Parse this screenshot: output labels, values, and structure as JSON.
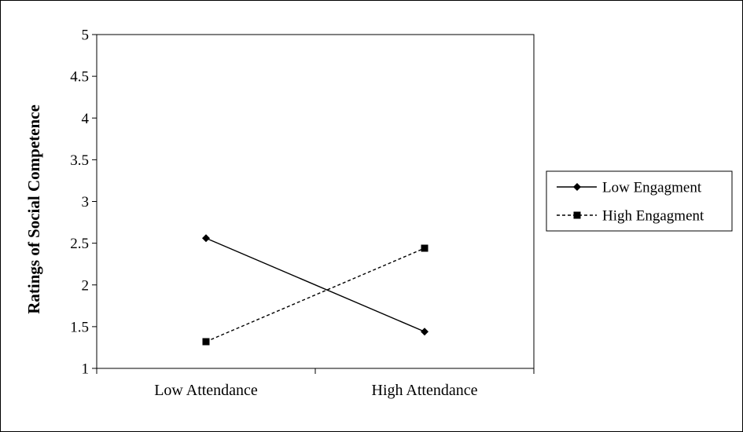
{
  "chart_data": {
    "type": "line",
    "categories": [
      "Low Attendance",
      "High Attendance"
    ],
    "series": [
      {
        "name": "Low Engagment",
        "values": [
          2.56,
          1.44
        ],
        "marker": "diamond",
        "line_style": "solid"
      },
      {
        "name": "High Engagment",
        "values": [
          1.32,
          2.44
        ],
        "marker": "square",
        "line_style": "dashed"
      }
    ],
    "title": "",
    "xlabel": "",
    "ylabel": "Ratings of Social Competence",
    "ylim": [
      1,
      5
    ],
    "yticks": [
      "1",
      "1.5",
      "2",
      "2.5",
      "3",
      "3.5",
      "4",
      "4.5",
      "5"
    ],
    "grid": false,
    "legend_position": "right"
  },
  "colors": {
    "line": "#000000",
    "background": "#ffffff"
  }
}
